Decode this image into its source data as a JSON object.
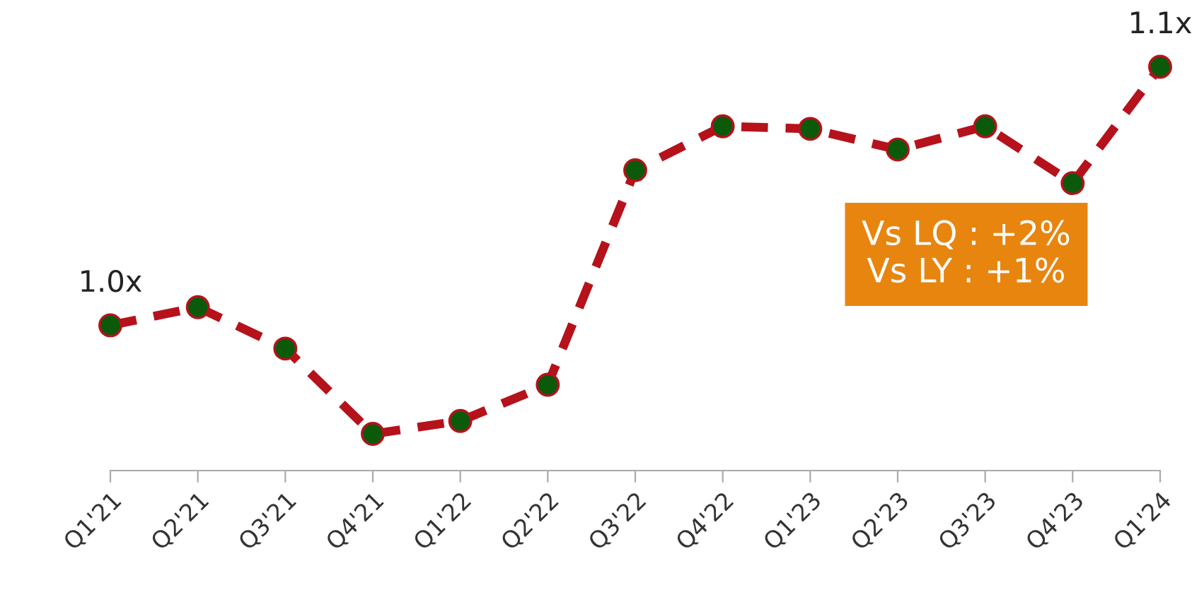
{
  "chart_data": {
    "type": "line",
    "categories": [
      "Q1'21",
      "Q2'21",
      "Q3'21",
      "Q4'21",
      "Q1'22",
      "Q2'22",
      "Q3'22",
      "Q4'22",
      "Q1'23",
      "Q2'23",
      "Q3'23",
      "Q4'23",
      "Q1'24"
    ],
    "series": [
      {
        "color": "#b5121b",
        "values": [
          1.0,
          1.007,
          0.991,
          0.958,
          0.963,
          0.977,
          1.06,
          1.077,
          1.076,
          1.068,
          1.077,
          1.055,
          1.1
        ],
        "value_labels": [
          "1.0x",
          null,
          null,
          null,
          null,
          null,
          null,
          null,
          null,
          null,
          null,
          null,
          "1.1x"
        ]
      }
    ],
    "marker": "circle",
    "line_style": "dashed",
    "grid": false,
    "legend": false,
    "annotations": [
      "Vs LQ : +2%\nVs LY : +1%"
    ]
  }
}
